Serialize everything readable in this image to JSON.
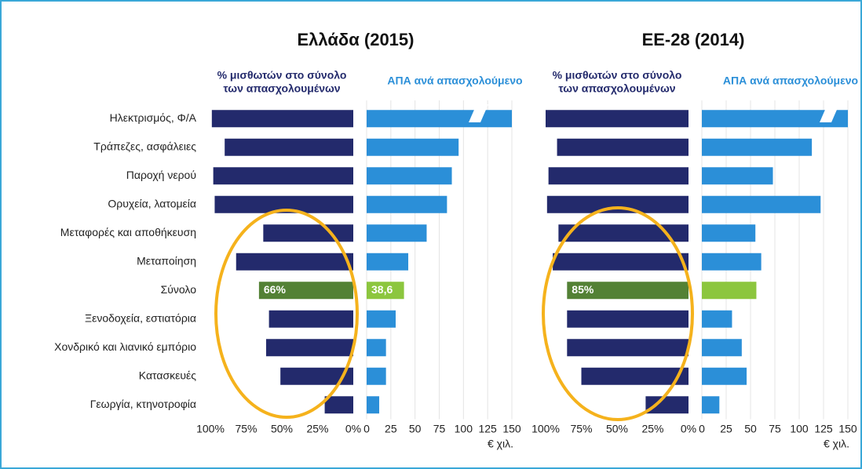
{
  "chart_data": [
    {
      "type": "hbar",
      "title": "Ελλάδα (2015)",
      "xlabel": [
        "% μισθωτών στο σύνολο",
        "των απασχολουμένων"
      ],
      "categories": [
        "Ηλεκτρισμός, Φ/Α",
        "Τράπεζες, ασφάλειες",
        "Παροχή νερού",
        "Ορυχεία, λατομεία",
        "Μεταφορές και αποθήκευση",
        "Μεταποίηση",
        "Σύνολο",
        "Ξενοδοχεία, εστιατόρια",
        "Χονδρικό και λιανικό εμπόριο",
        "Κατασκευές",
        "Γεωργία, κτηνοτροφία"
      ],
      "values": [
        99,
        90,
        98,
        97,
        63,
        82,
        66,
        59,
        61,
        51,
        20
      ],
      "value_labels": [
        null,
        null,
        null,
        null,
        null,
        null,
        "66%",
        null,
        null,
        null,
        null
      ],
      "colors": [
        "#232a6c",
        "#232a6c",
        "#232a6c",
        "#232a6c",
        "#232a6c",
        "#232a6c",
        "#538135",
        "#232a6c",
        "#232a6c",
        "#232a6c",
        "#232a6c"
      ],
      "xlim": [
        100,
        0
      ],
      "xticks": [
        {
          "value": 100,
          "label": "100%"
        },
        {
          "value": 75,
          "label": "75%"
        },
        {
          "value": 50,
          "label": "50%"
        },
        {
          "value": 25,
          "label": "25%"
        },
        {
          "value": 0,
          "label": "0%"
        }
      ],
      "grid": false
    },
    {
      "type": "hbar",
      "xlabel": [
        "ΑΠΑ ανά απασχολούμενο"
      ],
      "unit": "€ χιλ.",
      "values": [
        150,
        95,
        88,
        83,
        62,
        43,
        38.6,
        30,
        20,
        20,
        13
      ],
      "value_labels": [
        null,
        null,
        null,
        null,
        null,
        null,
        "38,6",
        null,
        null,
        null,
        null
      ],
      "colors": [
        "#2b8fd8",
        "#2b8fd8",
        "#2b8fd8",
        "#2b8fd8",
        "#2b8fd8",
        "#2b8fd8",
        "#8cc63e",
        "#2b8fd8",
        "#2b8fd8",
        "#2b8fd8",
        "#2b8fd8"
      ],
      "xlim": [
        0,
        150
      ],
      "xticks": [
        0,
        25,
        50,
        75,
        100,
        125,
        150
      ],
      "grid": true
    },
    {
      "type": "hbar",
      "title": "ΕΕ-28 (2014)",
      "xlabel": [
        "% μισθωτών στο σύνολο",
        "των απασχολουμένων"
      ],
      "values": [
        100,
        92,
        98,
        99,
        91,
        95,
        85,
        85,
        85,
        75,
        30
      ],
      "value_labels": [
        null,
        null,
        null,
        null,
        null,
        null,
        "85%",
        null,
        null,
        null,
        null
      ],
      "colors": [
        "#232a6c",
        "#232a6c",
        "#232a6c",
        "#232a6c",
        "#232a6c",
        "#232a6c",
        "#538135",
        "#232a6c",
        "#232a6c",
        "#232a6c",
        "#232a6c"
      ],
      "xlim": [
        100,
        0
      ],
      "xticks": [
        {
          "value": 100,
          "label": "100%"
        },
        {
          "value": 75,
          "label": "75%"
        },
        {
          "value": 50,
          "label": "50%"
        },
        {
          "value": 25,
          "label": "25%"
        },
        {
          "value": 0,
          "label": "0%"
        }
      ],
      "grid": false
    },
    {
      "type": "hbar",
      "xlabel": [
        "ΑΠΑ ανά απασχολούμενο"
      ],
      "unit": "€ χιλ.",
      "values": [
        150,
        113,
        73,
        122,
        55,
        61,
        56,
        31,
        41,
        46,
        18
      ],
      "colors": [
        "#2b8fd8",
        "#2b8fd8",
        "#2b8fd8",
        "#2b8fd8",
        "#2b8fd8",
        "#2b8fd8",
        "#8cc63e",
        "#2b8fd8",
        "#2b8fd8",
        "#2b8fd8",
        "#2b8fd8"
      ],
      "xlim": [
        0,
        150
      ],
      "xticks": [
        0,
        25,
        50,
        75,
        100,
        125,
        150
      ],
      "grid": true
    }
  ]
}
